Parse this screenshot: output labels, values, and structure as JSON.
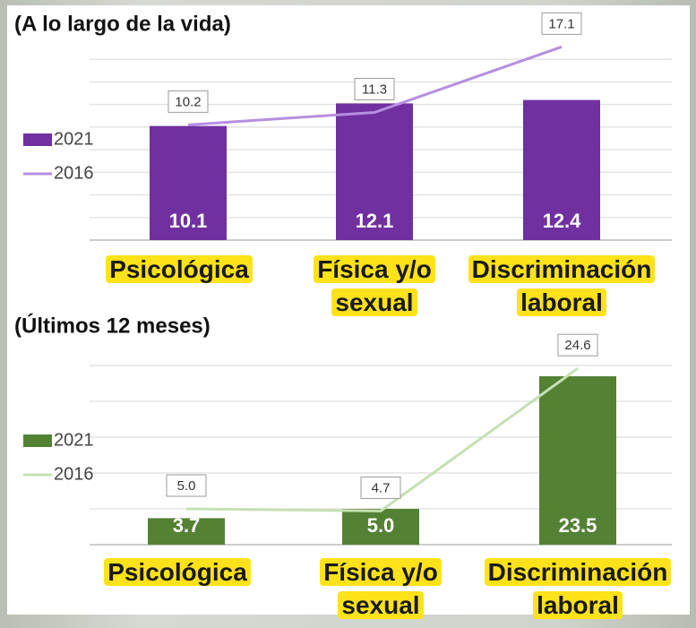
{
  "chart_data": [
    {
      "type": "bar",
      "title": "(A lo largo de la vida)",
      "categories": [
        "Psicológica",
        "Física y/o sexual",
        "Discriminación laboral"
      ],
      "series": [
        {
          "name": "2021",
          "type": "bar",
          "color": "#7030a0",
          "values": [
            10.1,
            12.1,
            12.4
          ],
          "value_labels": [
            "10.1",
            "12.1",
            "12.4"
          ]
        },
        {
          "name": "2016",
          "type": "line",
          "color": "#b68fe0",
          "values": [
            10.2,
            11.3,
            17.1
          ],
          "value_labels": [
            "10.2",
            "11.3",
            "17.1"
          ]
        }
      ],
      "ylim": [
        0,
        18
      ],
      "yticks": [
        0,
        2,
        4,
        6,
        8,
        10,
        12,
        14,
        16
      ],
      "grid": true,
      "legend": "left"
    },
    {
      "type": "bar",
      "title": "(Últimos 12 meses)",
      "categories": [
        "Psicológica",
        "Física y/o sexual",
        "Discriminación laboral"
      ],
      "series": [
        {
          "name": "2021",
          "type": "bar",
          "color": "#548235",
          "values": [
            3.7,
            5.0,
            23.5
          ],
          "value_labels": [
            "3.7",
            "5.0",
            "23.5"
          ]
        },
        {
          "name": "2016",
          "type": "line",
          "color": "#c5e0b4",
          "values": [
            5.0,
            4.7,
            24.6
          ],
          "value_labels": [
            "5.0",
            "4.7",
            "24.6"
          ]
        }
      ],
      "ylim": [
        0,
        25
      ],
      "yticks": [
        0,
        5,
        10,
        15,
        20,
        25
      ],
      "grid": true,
      "legend": "left"
    }
  ]
}
